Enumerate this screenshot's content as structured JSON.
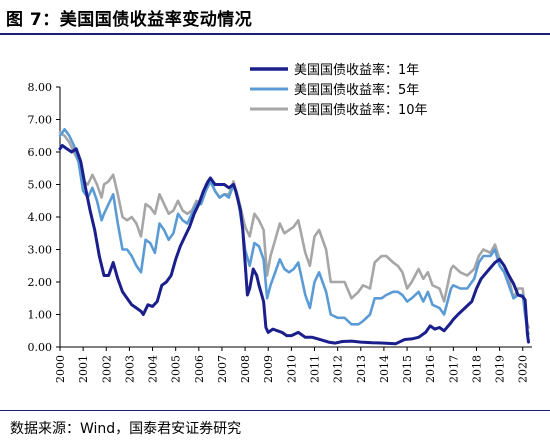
{
  "figure": {
    "title": "图 7：美国国债收益率变动情况",
    "source": "数据来源：Wind，国泰君安证券研究"
  },
  "chart_data": {
    "type": "line",
    "title": "图 7：美国国债收益率变动情况",
    "xlabel": "",
    "ylabel": "",
    "xlim": [
      2000,
      2020.4
    ],
    "ylim": [
      0,
      8
    ],
    "y_ticks": [
      "0.00",
      "1.00",
      "2.00",
      "3.00",
      "4.00",
      "5.00",
      "6.00",
      "7.00",
      "8.00"
    ],
    "x_ticks": [
      "2000",
      "2001",
      "2002",
      "2003",
      "2004",
      "2005",
      "2006",
      "2007",
      "2008",
      "2009",
      "2010",
      "2011",
      "2012",
      "2013",
      "2014",
      "2015",
      "2016",
      "2017",
      "2018",
      "2019",
      "2020"
    ],
    "grid": false,
    "legend_position": "top-right",
    "series": [
      {
        "name": "美国国债收益率：1年",
        "color": "#1a1f8c",
        "points": [
          [
            2000.0,
            6.1
          ],
          [
            2000.1,
            6.2
          ],
          [
            2000.3,
            6.1
          ],
          [
            2000.5,
            6.0
          ],
          [
            2000.7,
            6.1
          ],
          [
            2000.9,
            5.7
          ],
          [
            2001.1,
            4.9
          ],
          [
            2001.3,
            4.2
          ],
          [
            2001.5,
            3.6
          ],
          [
            2001.7,
            2.8
          ],
          [
            2001.9,
            2.2
          ],
          [
            2002.1,
            2.2
          ],
          [
            2002.3,
            2.6
          ],
          [
            2002.5,
            2.1
          ],
          [
            2002.7,
            1.7
          ],
          [
            2002.9,
            1.5
          ],
          [
            2003.1,
            1.3
          ],
          [
            2003.3,
            1.2
          ],
          [
            2003.5,
            1.1
          ],
          [
            2003.6,
            1.0
          ],
          [
            2003.8,
            1.3
          ],
          [
            2004.0,
            1.25
          ],
          [
            2004.2,
            1.4
          ],
          [
            2004.4,
            1.9
          ],
          [
            2004.6,
            2.0
          ],
          [
            2004.8,
            2.2
          ],
          [
            2005.0,
            2.7
          ],
          [
            2005.2,
            3.1
          ],
          [
            2005.4,
            3.4
          ],
          [
            2005.6,
            3.7
          ],
          [
            2005.8,
            4.1
          ],
          [
            2006.0,
            4.4
          ],
          [
            2006.2,
            4.8
          ],
          [
            2006.4,
            5.1
          ],
          [
            2006.5,
            5.2
          ],
          [
            2006.7,
            5.0
          ],
          [
            2006.9,
            5.0
          ],
          [
            2007.1,
            5.0
          ],
          [
            2007.3,
            4.9
          ],
          [
            2007.5,
            5.0
          ],
          [
            2007.6,
            4.8
          ],
          [
            2007.8,
            4.2
          ],
          [
            2007.9,
            3.6
          ],
          [
            2008.0,
            2.6
          ],
          [
            2008.1,
            1.6
          ],
          [
            2008.2,
            1.8
          ],
          [
            2008.35,
            2.4
          ],
          [
            2008.5,
            2.2
          ],
          [
            2008.6,
            1.9
          ],
          [
            2008.8,
            1.4
          ],
          [
            2008.9,
            0.6
          ],
          [
            2009.0,
            0.45
          ],
          [
            2009.2,
            0.55
          ],
          [
            2009.4,
            0.5
          ],
          [
            2009.6,
            0.45
          ],
          [
            2009.8,
            0.35
          ],
          [
            2010.0,
            0.35
          ],
          [
            2010.3,
            0.45
          ],
          [
            2010.6,
            0.3
          ],
          [
            2010.9,
            0.3
          ],
          [
            2011.0,
            0.28
          ],
          [
            2011.3,
            0.22
          ],
          [
            2011.6,
            0.15
          ],
          [
            2011.9,
            0.12
          ],
          [
            2012.2,
            0.17
          ],
          [
            2012.6,
            0.18
          ],
          [
            2013.0,
            0.15
          ],
          [
            2013.5,
            0.13
          ],
          [
            2014.0,
            0.12
          ],
          [
            2014.5,
            0.1
          ],
          [
            2014.9,
            0.23
          ],
          [
            2015.2,
            0.25
          ],
          [
            2015.5,
            0.3
          ],
          [
            2015.8,
            0.45
          ],
          [
            2016.0,
            0.65
          ],
          [
            2016.2,
            0.55
          ],
          [
            2016.4,
            0.6
          ],
          [
            2016.6,
            0.5
          ],
          [
            2016.9,
            0.75
          ],
          [
            2017.0,
            0.85
          ],
          [
            2017.2,
            1.0
          ],
          [
            2017.5,
            1.2
          ],
          [
            2017.8,
            1.4
          ],
          [
            2018.0,
            1.8
          ],
          [
            2018.2,
            2.1
          ],
          [
            2018.5,
            2.35
          ],
          [
            2018.8,
            2.6
          ],
          [
            2019.0,
            2.7
          ],
          [
            2019.2,
            2.5
          ],
          [
            2019.4,
            2.2
          ],
          [
            2019.6,
            1.95
          ],
          [
            2019.8,
            1.6
          ],
          [
            2020.0,
            1.55
          ],
          [
            2020.1,
            1.45
          ],
          [
            2020.2,
            0.4
          ],
          [
            2020.25,
            0.15
          ]
        ]
      },
      {
        "name": "美国国债收益率：5年",
        "color": "#5b9bd5",
        "points": [
          [
            2000.0,
            6.5
          ],
          [
            2000.2,
            6.7
          ],
          [
            2000.4,
            6.5
          ],
          [
            2000.6,
            6.2
          ],
          [
            2000.8,
            5.7
          ],
          [
            2001.0,
            4.8
          ],
          [
            2001.2,
            4.6
          ],
          [
            2001.4,
            4.9
          ],
          [
            2001.6,
            4.5
          ],
          [
            2001.8,
            3.9
          ],
          [
            2001.9,
            4.1
          ],
          [
            2002.1,
            4.4
          ],
          [
            2002.3,
            4.7
          ],
          [
            2002.5,
            3.8
          ],
          [
            2002.7,
            3.0
          ],
          [
            2002.9,
            3.0
          ],
          [
            2003.1,
            2.8
          ],
          [
            2003.3,
            2.5
          ],
          [
            2003.5,
            2.3
          ],
          [
            2003.7,
            3.3
          ],
          [
            2003.9,
            3.2
          ],
          [
            2004.1,
            2.9
          ],
          [
            2004.3,
            3.8
          ],
          [
            2004.5,
            3.6
          ],
          [
            2004.7,
            3.3
          ],
          [
            2004.9,
            3.5
          ],
          [
            2005.1,
            4.1
          ],
          [
            2005.3,
            3.9
          ],
          [
            2005.5,
            3.8
          ],
          [
            2005.7,
            4.1
          ],
          [
            2005.9,
            4.4
          ],
          [
            2006.1,
            4.4
          ],
          [
            2006.3,
            4.8
          ],
          [
            2006.5,
            5.1
          ],
          [
            2006.7,
            4.8
          ],
          [
            2006.9,
            4.6
          ],
          [
            2007.1,
            4.7
          ],
          [
            2007.3,
            4.6
          ],
          [
            2007.5,
            5.0
          ],
          [
            2007.7,
            4.5
          ],
          [
            2007.9,
            3.6
          ],
          [
            2008.0,
            3.0
          ],
          [
            2008.2,
            2.5
          ],
          [
            2008.4,
            3.2
          ],
          [
            2008.6,
            3.1
          ],
          [
            2008.8,
            2.7
          ],
          [
            2008.95,
            1.5
          ],
          [
            2009.1,
            1.9
          ],
          [
            2009.3,
            2.3
          ],
          [
            2009.5,
            2.7
          ],
          [
            2009.7,
            2.4
          ],
          [
            2009.9,
            2.3
          ],
          [
            2010.1,
            2.4
          ],
          [
            2010.3,
            2.6
          ],
          [
            2010.6,
            1.6
          ],
          [
            2010.8,
            1.2
          ],
          [
            2011.0,
            2.0
          ],
          [
            2011.2,
            2.3
          ],
          [
            2011.5,
            1.7
          ],
          [
            2011.7,
            1.0
          ],
          [
            2012.0,
            0.9
          ],
          [
            2012.3,
            0.9
          ],
          [
            2012.6,
            0.7
          ],
          [
            2012.9,
            0.7
          ],
          [
            2013.1,
            0.8
          ],
          [
            2013.4,
            1.0
          ],
          [
            2013.6,
            1.5
          ],
          [
            2013.9,
            1.5
          ],
          [
            2014.1,
            1.6
          ],
          [
            2014.4,
            1.7
          ],
          [
            2014.6,
            1.7
          ],
          [
            2014.8,
            1.6
          ],
          [
            2015.0,
            1.4
          ],
          [
            2015.2,
            1.5
          ],
          [
            2015.5,
            1.7
          ],
          [
            2015.7,
            1.4
          ],
          [
            2015.9,
            1.7
          ],
          [
            2016.1,
            1.3
          ],
          [
            2016.4,
            1.2
          ],
          [
            2016.6,
            1.0
          ],
          [
            2016.9,
            1.8
          ],
          [
            2017.0,
            1.9
          ],
          [
            2017.3,
            1.8
          ],
          [
            2017.6,
            1.8
          ],
          [
            2017.9,
            2.1
          ],
          [
            2018.1,
            2.6
          ],
          [
            2018.3,
            2.8
          ],
          [
            2018.6,
            2.8
          ],
          [
            2018.8,
            3.0
          ],
          [
            2019.0,
            2.5
          ],
          [
            2019.2,
            2.3
          ],
          [
            2019.4,
            1.9
          ],
          [
            2019.6,
            1.5
          ],
          [
            2019.8,
            1.6
          ],
          [
            2020.0,
            1.6
          ],
          [
            2020.1,
            1.0
          ],
          [
            2020.2,
            0.5
          ],
          [
            2020.25,
            0.4
          ]
        ]
      },
      {
        "name": "美国国债收益率：10年",
        "color": "#a6a6a6",
        "points": [
          [
            2000.0,
            6.6
          ],
          [
            2000.2,
            6.5
          ],
          [
            2000.4,
            6.3
          ],
          [
            2000.6,
            6.0
          ],
          [
            2000.8,
            5.7
          ],
          [
            2001.0,
            5.1
          ],
          [
            2001.2,
            5.0
          ],
          [
            2001.4,
            5.3
          ],
          [
            2001.6,
            5.0
          ],
          [
            2001.8,
            4.6
          ],
          [
            2001.9,
            5.0
          ],
          [
            2002.1,
            5.1
          ],
          [
            2002.3,
            5.3
          ],
          [
            2002.5,
            4.7
          ],
          [
            2002.7,
            4.0
          ],
          [
            2002.9,
            3.9
          ],
          [
            2003.1,
            4.0
          ],
          [
            2003.3,
            3.8
          ],
          [
            2003.5,
            3.4
          ],
          [
            2003.7,
            4.4
          ],
          [
            2003.9,
            4.3
          ],
          [
            2004.1,
            4.1
          ],
          [
            2004.3,
            4.7
          ],
          [
            2004.5,
            4.4
          ],
          [
            2004.7,
            4.1
          ],
          [
            2004.9,
            4.2
          ],
          [
            2005.1,
            4.5
          ],
          [
            2005.3,
            4.2
          ],
          [
            2005.5,
            4.1
          ],
          [
            2005.7,
            4.2
          ],
          [
            2005.9,
            4.5
          ],
          [
            2006.1,
            4.4
          ],
          [
            2006.3,
            5.0
          ],
          [
            2006.5,
            5.2
          ],
          [
            2006.7,
            4.8
          ],
          [
            2006.9,
            4.6
          ],
          [
            2007.1,
            4.7
          ],
          [
            2007.3,
            4.7
          ],
          [
            2007.5,
            5.1
          ],
          [
            2007.7,
            4.6
          ],
          [
            2007.9,
            4.0
          ],
          [
            2008.0,
            3.7
          ],
          [
            2008.2,
            3.4
          ],
          [
            2008.4,
            4.1
          ],
          [
            2008.6,
            3.9
          ],
          [
            2008.8,
            3.6
          ],
          [
            2008.95,
            2.2
          ],
          [
            2009.1,
            2.8
          ],
          [
            2009.3,
            3.3
          ],
          [
            2009.5,
            3.8
          ],
          [
            2009.7,
            3.5
          ],
          [
            2009.9,
            3.6
          ],
          [
            2010.1,
            3.7
          ],
          [
            2010.3,
            3.9
          ],
          [
            2010.6,
            2.9
          ],
          [
            2010.8,
            2.5
          ],
          [
            2011.0,
            3.4
          ],
          [
            2011.2,
            3.6
          ],
          [
            2011.5,
            3.0
          ],
          [
            2011.7,
            2.0
          ],
          [
            2012.0,
            2.0
          ],
          [
            2012.3,
            2.0
          ],
          [
            2012.6,
            1.5
          ],
          [
            2012.9,
            1.7
          ],
          [
            2013.1,
            1.9
          ],
          [
            2013.4,
            1.8
          ],
          [
            2013.6,
            2.6
          ],
          [
            2013.9,
            2.8
          ],
          [
            2014.1,
            2.8
          ],
          [
            2014.4,
            2.6
          ],
          [
            2014.6,
            2.5
          ],
          [
            2014.8,
            2.3
          ],
          [
            2015.0,
            1.8
          ],
          [
            2015.2,
            2.0
          ],
          [
            2015.5,
            2.4
          ],
          [
            2015.7,
            2.1
          ],
          [
            2015.9,
            2.3
          ],
          [
            2016.1,
            1.9
          ],
          [
            2016.4,
            1.8
          ],
          [
            2016.6,
            1.4
          ],
          [
            2016.9,
            2.4
          ],
          [
            2017.0,
            2.5
          ],
          [
            2017.3,
            2.3
          ],
          [
            2017.6,
            2.2
          ],
          [
            2017.9,
            2.4
          ],
          [
            2018.1,
            2.8
          ],
          [
            2018.3,
            3.0
          ],
          [
            2018.6,
            2.9
          ],
          [
            2018.8,
            3.15
          ],
          [
            2019.0,
            2.7
          ],
          [
            2019.2,
            2.5
          ],
          [
            2019.4,
            2.1
          ],
          [
            2019.6,
            1.5
          ],
          [
            2019.8,
            1.8
          ],
          [
            2020.0,
            1.8
          ],
          [
            2020.1,
            1.2
          ],
          [
            2020.2,
            0.7
          ],
          [
            2020.25,
            0.6
          ]
        ]
      }
    ]
  }
}
